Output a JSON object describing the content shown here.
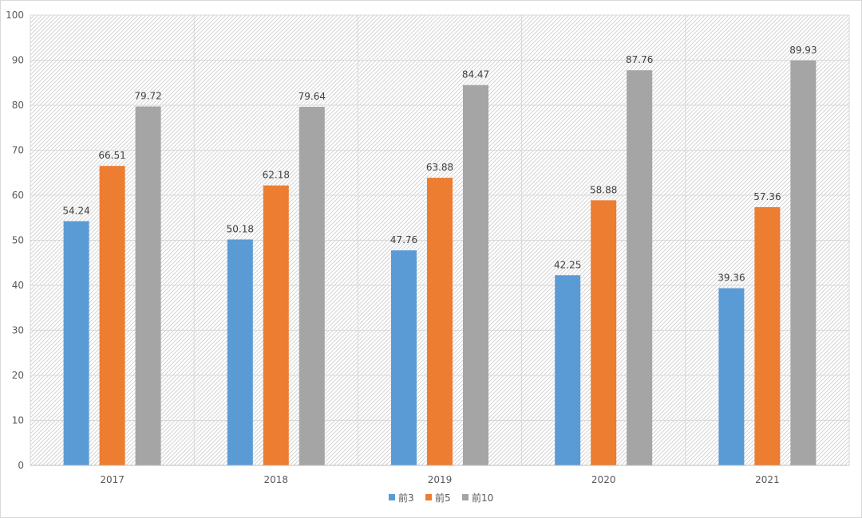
{
  "chart_data": {
    "type": "bar",
    "title": "",
    "xlabel": "",
    "ylabel": "",
    "categories": [
      "2017",
      "2018",
      "2019",
      "2020",
      "2021"
    ],
    "series": [
      {
        "name": "前3",
        "color": "#5b9bd5",
        "values": [
          54.24,
          50.18,
          47.76,
          42.25,
          39.36
        ]
      },
      {
        "name": "前5",
        "color": "#ed7d31",
        "values": [
          66.51,
          62.18,
          63.88,
          58.88,
          57.36
        ]
      },
      {
        "name": "前10",
        "color": "#a5a5a5",
        "values": [
          79.72,
          79.64,
          84.47,
          87.76,
          89.93
        ]
      }
    ],
    "ylim": [
      0,
      100
    ],
    "yticks": [
      "0",
      "10",
      "20",
      "30",
      "40",
      "50",
      "60",
      "70",
      "80",
      "90",
      "100"
    ],
    "grid": true,
    "legend_position": "bottom",
    "data_labels": true
  }
}
